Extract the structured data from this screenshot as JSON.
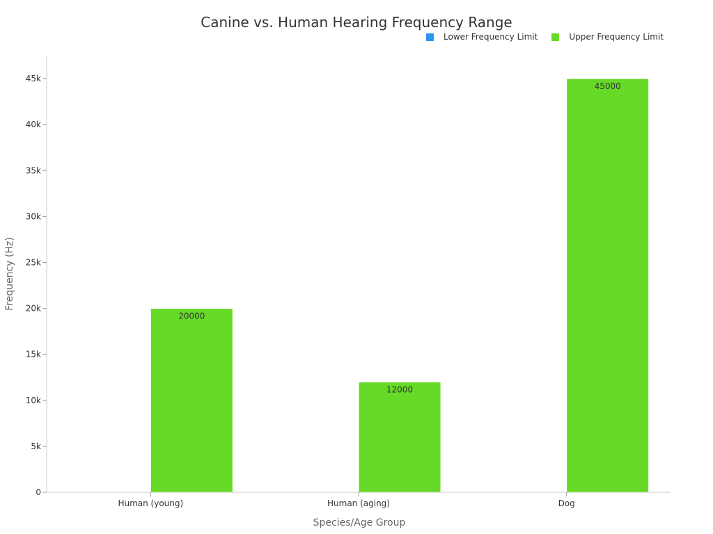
{
  "chart_data": {
    "type": "bar",
    "title": "Canine vs. Human Hearing Frequency Range",
    "xlabel": "Species/Age Group",
    "ylabel": "Frequency (Hz)",
    "categories": [
      "Human (young)",
      "Human (aging)",
      "Dog"
    ],
    "series": [
      {
        "name": "Lower Frequency Limit",
        "color": "#2e93f0",
        "values": [
          20,
          20,
          67
        ]
      },
      {
        "name": "Upper Frequency Limit",
        "color": "#66da26",
        "values": [
          20000,
          12000,
          45000
        ]
      }
    ],
    "data_labels": [
      "20000",
      "12000",
      "45000"
    ],
    "ylim": [
      0,
      47500
    ],
    "yticks": [
      0,
      5000,
      10000,
      15000,
      20000,
      25000,
      30000,
      35000,
      40000,
      45000
    ],
    "ytick_labels": [
      "0",
      "5k",
      "10k",
      "15k",
      "20k",
      "25k",
      "30k",
      "35k",
      "40k",
      "45k"
    ],
    "grid": false,
    "legend_position": "top-right"
  }
}
